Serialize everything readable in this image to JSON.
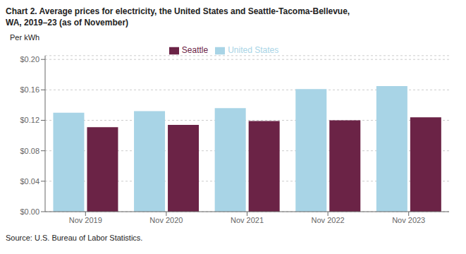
{
  "chart_data": {
    "type": "bar",
    "title": "Chart 2. Average prices for electricity, the United States and Seattle-Tacoma-Bellevue,",
    "subtitle": "WA, 2019–23 (as of November)",
    "y_label": "Per kWh",
    "annotations": [
      "Source: U.S. Bureau of Labor Statistics."
    ],
    "categories": [
      "Nov 2019",
      "Nov 2020",
      "Nov 2021",
      "Nov 2022",
      "Nov 2023"
    ],
    "series": [
      {
        "name": "United States",
        "color": "#a8d4e6",
        "values": [
          0.13,
          0.132,
          0.136,
          0.161,
          0.165
        ]
      },
      {
        "name": "Seattle",
        "color": "#6b2346",
        "values": [
          0.111,
          0.114,
          0.119,
          0.12,
          0.124
        ]
      }
    ],
    "ylim": [
      0.0,
      0.205
    ],
    "yticks": [
      {
        "value": 0.0,
        "label": "$0.00"
      },
      {
        "value": 0.04,
        "label": "$0.04"
      },
      {
        "value": 0.08,
        "label": "$0.08"
      },
      {
        "value": 0.12,
        "label": "$0.12"
      },
      {
        "value": 0.16,
        "label": "$0.16"
      },
      {
        "value": 0.2,
        "label": "$0.20"
      }
    ],
    "grid": true,
    "legend": "top"
  }
}
